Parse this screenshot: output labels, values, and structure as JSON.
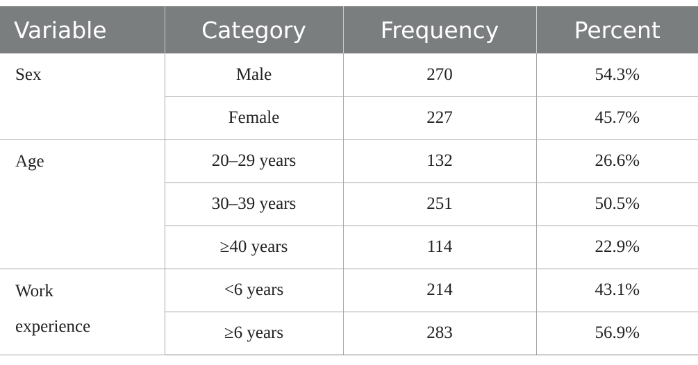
{
  "table": {
    "headers": [
      "Variable",
      "Category",
      "Frequency",
      "Percent"
    ],
    "groups": [
      {
        "variable": "Sex",
        "rows": [
          {
            "category": "Male",
            "frequency": "270",
            "percent": "54.3%"
          },
          {
            "category": "Female",
            "frequency": "227",
            "percent": "45.7%"
          }
        ]
      },
      {
        "variable": "Age",
        "rows": [
          {
            "category": "20–29 years",
            "frequency": "132",
            "percent": "26.6%"
          },
          {
            "category": "30–39 years",
            "frequency": "251",
            "percent": "50.5%"
          },
          {
            "category": "≥40 years",
            "frequency": "114",
            "percent": "22.9%"
          }
        ]
      },
      {
        "variable_lines": [
          "Work",
          "experience"
        ],
        "rows": [
          {
            "category": "<6 years",
            "frequency": "214",
            "percent": "43.1%"
          },
          {
            "category": "≥6 years",
            "frequency": "283",
            "percent": "56.9%"
          }
        ]
      }
    ]
  }
}
